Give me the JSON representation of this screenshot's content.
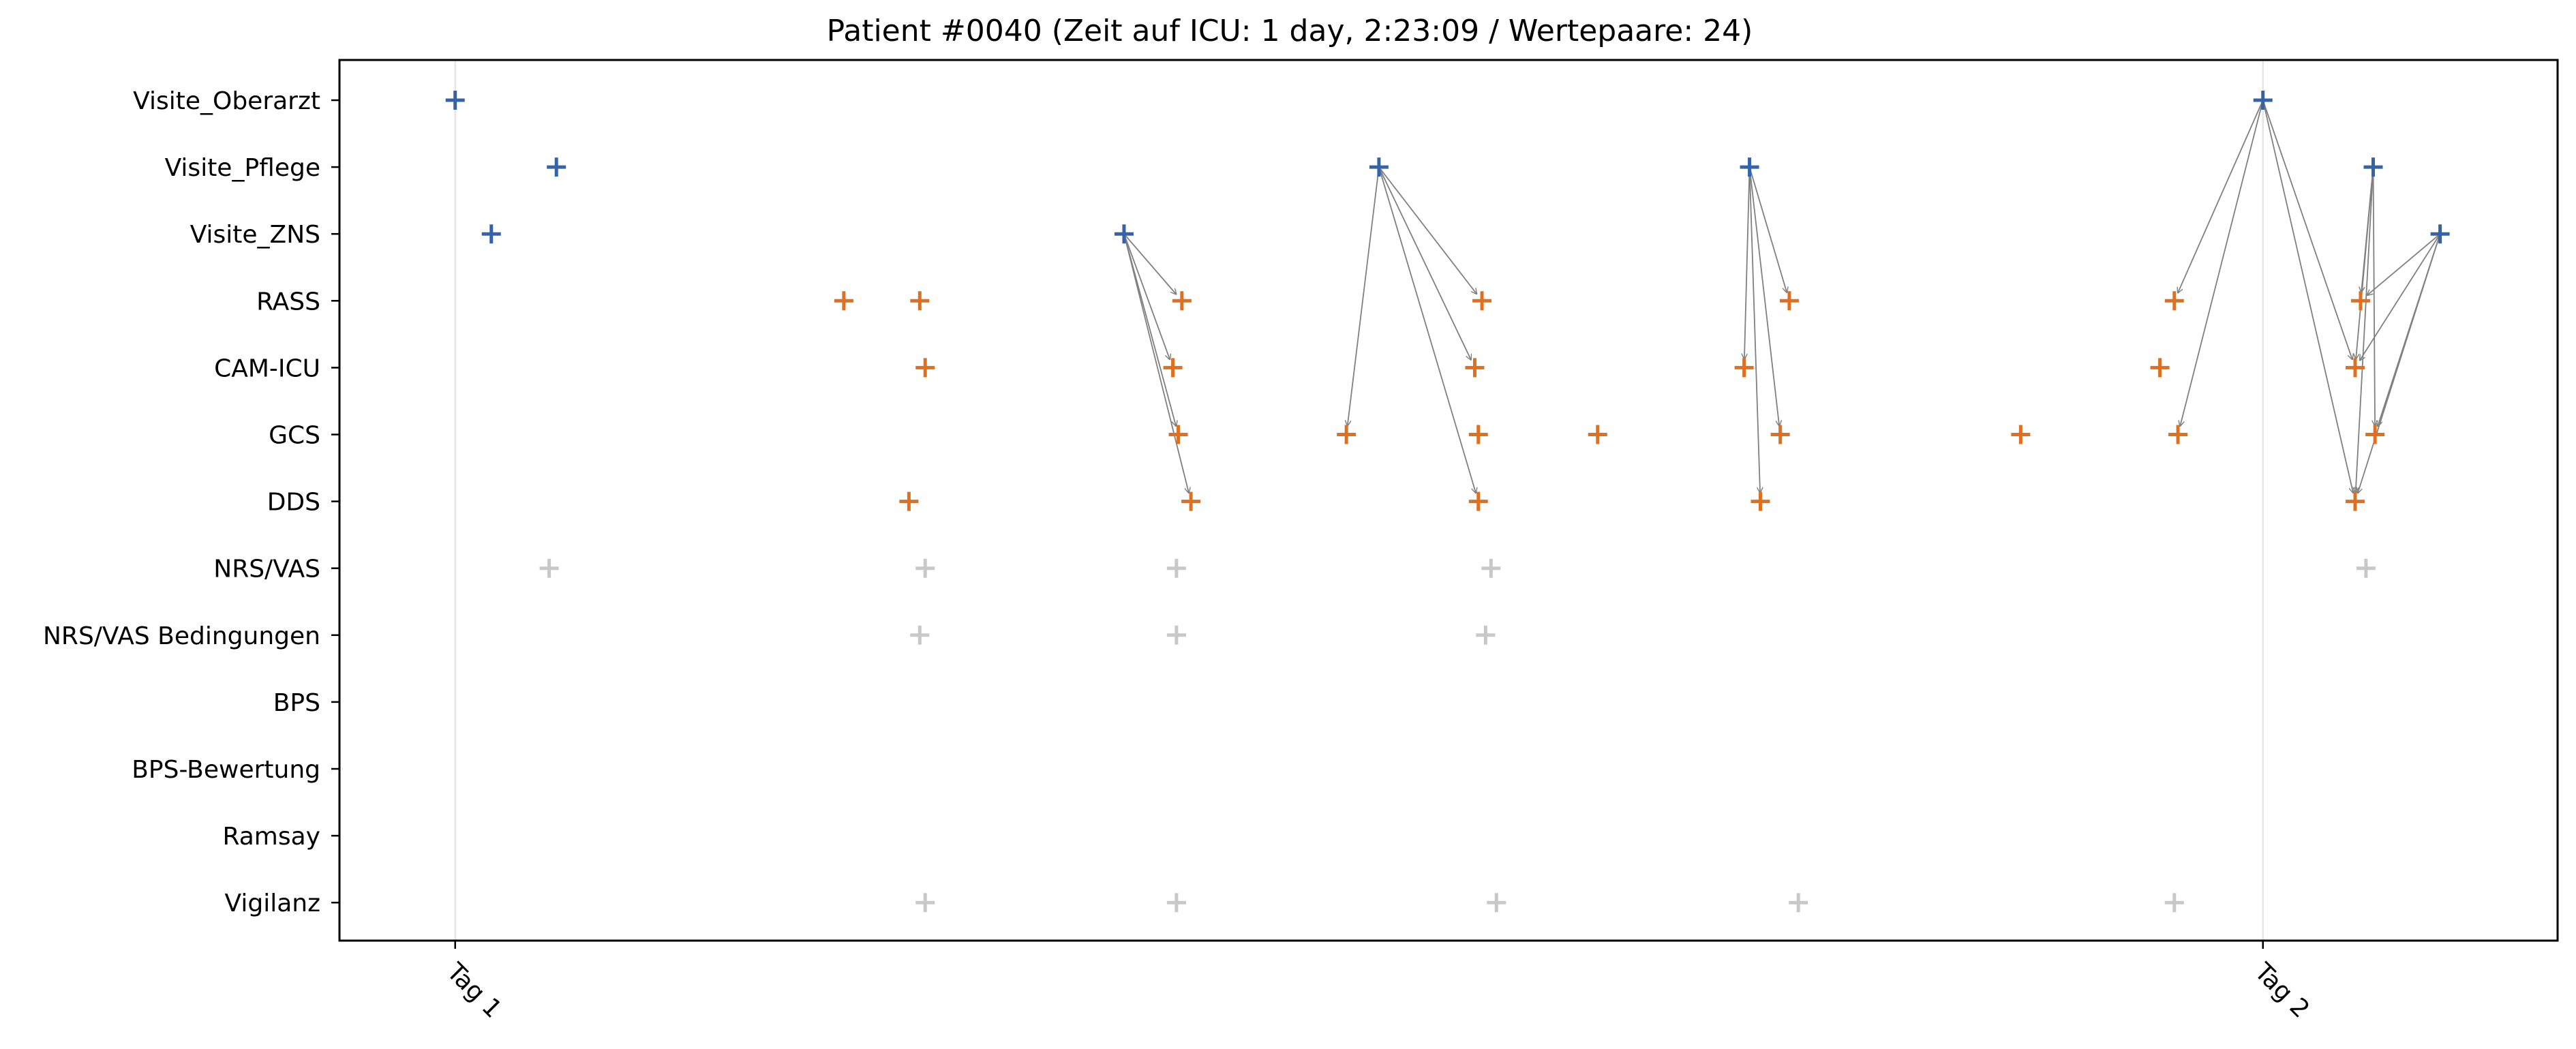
{
  "chart_data": {
    "type": "scatter",
    "title": "Patient #0040 (Zeit auf ICU: 1 day, 2:23:09 / Wertepaare: 24)",
    "xlabel": "",
    "ylabel": "",
    "xlim": [
      -0.064,
      1.163
    ],
    "x_ticks": [
      {
        "value": 0,
        "label": "Tag 1"
      },
      {
        "value": 1,
        "label": "Tag 2"
      }
    ],
    "categories": [
      "Visite_Oberarzt",
      "Visite_Pflege",
      "Visite_ZNS",
      "RASS",
      "CAM-ICU",
      "GCS",
      "DDS",
      "NRS/VAS",
      "NRS/VAS Bedingungen",
      "BPS",
      "BPS-Bewertung",
      "Ramsay",
      "Vigilanz"
    ],
    "grid": "vertical at x ticks",
    "colors": {
      "visits": "#3463a9",
      "scores": "#e07020",
      "other": "#c8c8c8",
      "arrow": "#808080"
    },
    "series": [
      {
        "color_key": "visits",
        "points": [
          [
            0.0,
            0
          ],
          [
            0.056,
            1
          ],
          [
            0.02,
            2
          ],
          [
            0.37,
            2
          ],
          [
            0.511,
            1
          ],
          [
            0.716,
            1
          ],
          [
            1.0,
            0
          ],
          [
            1.061,
            1
          ],
          [
            1.098,
            2
          ]
        ]
      },
      {
        "color_key": "scores",
        "points": [
          [
            0.215,
            3
          ],
          [
            0.257,
            3
          ],
          [
            0.402,
            3
          ],
          [
            0.568,
            3
          ],
          [
            0.738,
            3
          ],
          [
            0.951,
            3
          ],
          [
            1.054,
            3
          ],
          [
            0.26,
            4
          ],
          [
            0.397,
            4
          ],
          [
            0.564,
            4
          ],
          [
            0.713,
            4
          ],
          [
            0.943,
            4
          ],
          [
            1.051,
            4
          ],
          [
            0.4,
            5
          ],
          [
            0.493,
            5
          ],
          [
            0.566,
            5
          ],
          [
            0.632,
            5
          ],
          [
            0.733,
            5
          ],
          [
            0.866,
            5
          ],
          [
            0.953,
            5
          ],
          [
            1.062,
            5
          ],
          [
            0.251,
            6
          ],
          [
            0.407,
            6
          ],
          [
            0.566,
            6
          ],
          [
            0.722,
            6
          ],
          [
            1.051,
            6
          ]
        ]
      },
      {
        "color_key": "other",
        "points": [
          [
            0.052,
            7
          ],
          [
            0.26,
            7
          ],
          [
            0.399,
            7
          ],
          [
            0.573,
            7
          ],
          [
            1.057,
            7
          ],
          [
            0.257,
            8
          ],
          [
            0.399,
            8
          ],
          [
            0.57,
            8
          ],
          [
            0.26,
            12
          ],
          [
            0.399,
            12
          ],
          [
            0.576,
            12
          ],
          [
            0.743,
            12
          ],
          [
            0.951,
            12
          ]
        ]
      }
    ],
    "arrows": [
      [
        [
          0.37,
          2
        ],
        [
          0.402,
          3
        ]
      ],
      [
        [
          0.37,
          2
        ],
        [
          0.397,
          4
        ]
      ],
      [
        [
          0.37,
          2
        ],
        [
          0.4,
          5
        ]
      ],
      [
        [
          0.37,
          2
        ],
        [
          0.407,
          6
        ]
      ],
      [
        [
          0.511,
          1
        ],
        [
          0.568,
          3
        ]
      ],
      [
        [
          0.511,
          1
        ],
        [
          0.564,
          4
        ]
      ],
      [
        [
          0.511,
          1
        ],
        [
          0.493,
          5
        ]
      ],
      [
        [
          0.511,
          1
        ],
        [
          0.566,
          6
        ]
      ],
      [
        [
          0.716,
          1
        ],
        [
          0.738,
          3
        ]
      ],
      [
        [
          0.716,
          1
        ],
        [
          0.713,
          4
        ]
      ],
      [
        [
          0.716,
          1
        ],
        [
          0.733,
          5
        ]
      ],
      [
        [
          0.716,
          1
        ],
        [
          0.722,
          6
        ]
      ],
      [
        [
          1.0,
          0
        ],
        [
          0.951,
          3
        ]
      ],
      [
        [
          1.0,
          0
        ],
        [
          0.953,
          5
        ]
      ],
      [
        [
          1.0,
          0
        ],
        [
          1.051,
          4
        ]
      ],
      [
        [
          1.0,
          0
        ],
        [
          1.051,
          6
        ]
      ],
      [
        [
          1.061,
          1
        ],
        [
          1.054,
          3
        ]
      ],
      [
        [
          1.061,
          1
        ],
        [
          1.051,
          4
        ]
      ],
      [
        [
          1.061,
          1
        ],
        [
          1.062,
          5
        ]
      ],
      [
        [
          1.061,
          1
        ],
        [
          1.051,
          6
        ]
      ],
      [
        [
          1.098,
          2
        ],
        [
          1.054,
          3
        ]
      ],
      [
        [
          1.098,
          2
        ],
        [
          1.051,
          4
        ]
      ],
      [
        [
          1.098,
          2
        ],
        [
          1.062,
          5
        ]
      ],
      [
        [
          1.098,
          2
        ],
        [
          1.051,
          6
        ]
      ]
    ]
  }
}
